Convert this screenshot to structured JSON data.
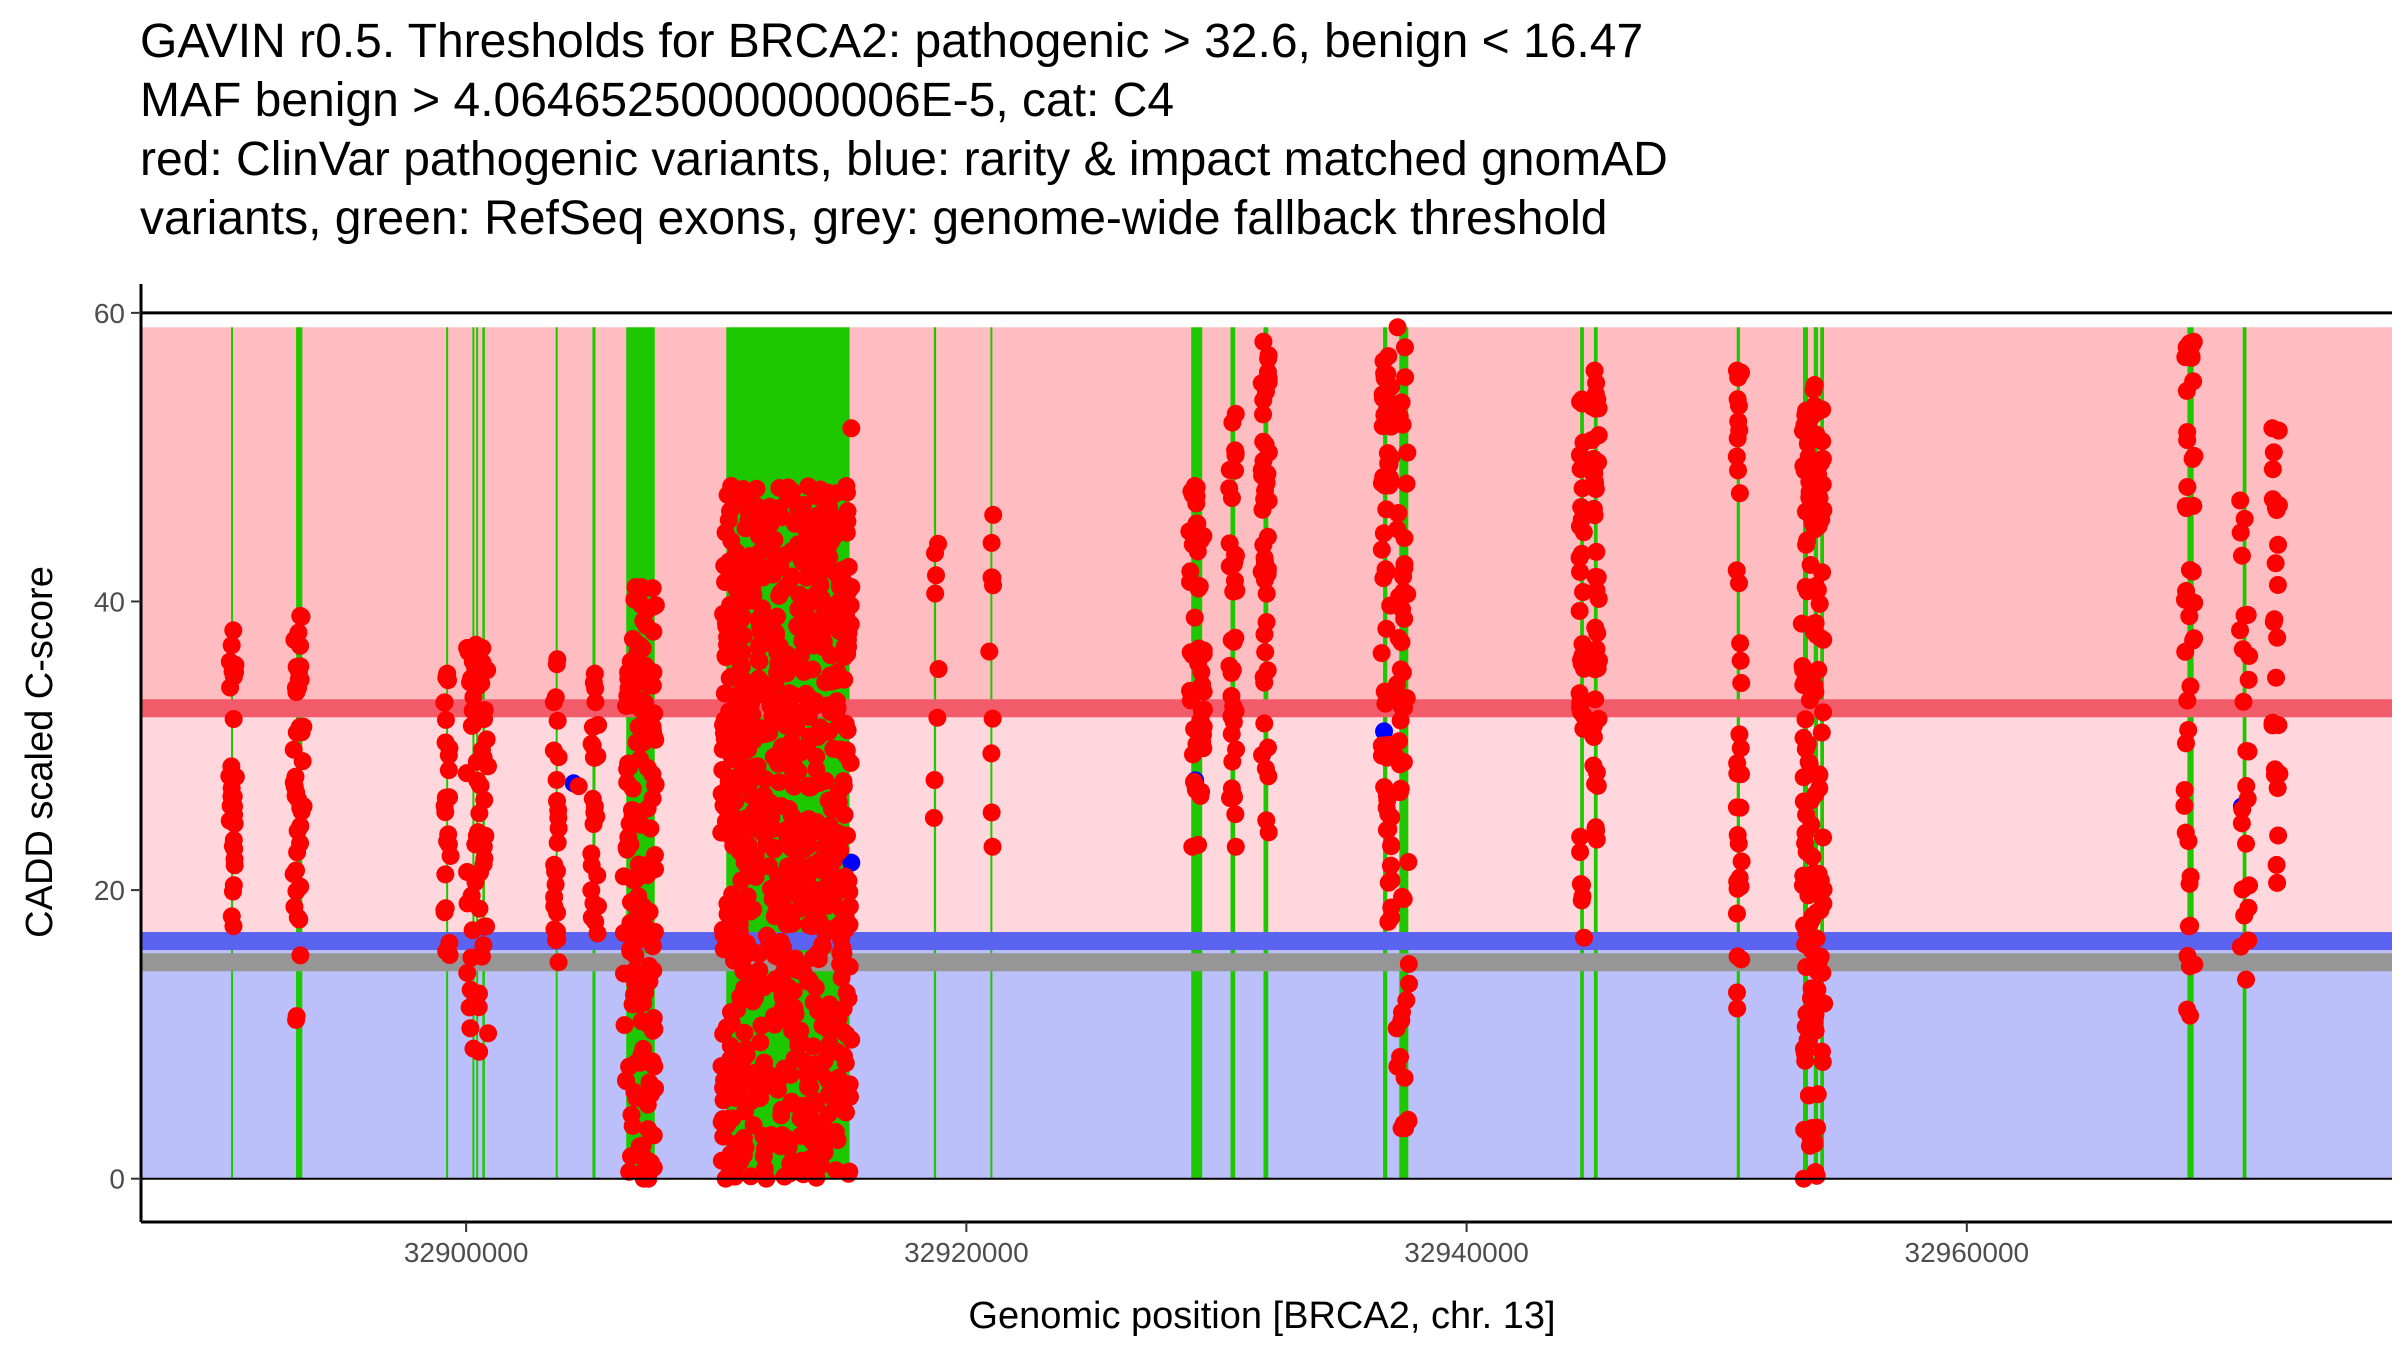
{
  "chart_data": {
    "type": "scatter",
    "title_lines": [
      "GAVIN r0.5. Thresholds for BRCA2: pathogenic > 32.6, benign < 16.47",
      "MAF benign > 4.0646525000000006E-5, cat: C4",
      "red: ClinVar pathogenic variants, blue: rarity & impact matched gnomAD",
      "variants, green: RefSeq exons, grey: genome-wide fallback threshold"
    ],
    "xlabel": "Genomic position [BRCA2, chr. 13]",
    "ylabel": "CADD scaled C-score",
    "xlim": [
      32887000,
      32977000
    ],
    "ylim": [
      -3,
      62
    ],
    "x_ticks": [
      32900000,
      32920000,
      32940000,
      32960000
    ],
    "y_ticks": [
      0,
      20,
      40,
      60
    ],
    "thresholds": {
      "pathogenic": 32.6,
      "benign": 16.47,
      "genome_wide_fallback": 15
    },
    "regions": [
      {
        "name": "pathogenic-zone",
        "y0": 32.6,
        "y1": 59,
        "color": "#ffbcc1"
      },
      {
        "name": "grey-zone",
        "y0": 16.47,
        "y1": 32.6,
        "color": "#ffd7dc"
      },
      {
        "name": "benign-zone",
        "y0": 0,
        "y1": 16.47,
        "color": "#bcc0fa"
      }
    ],
    "threshold_lines": [
      {
        "name": "pathogenic-threshold",
        "y": 32.6,
        "color": "#f25c6a"
      },
      {
        "name": "benign-threshold",
        "y": 16.47,
        "color": "#5b63f1"
      },
      {
        "name": "fallback-threshold",
        "y": 15,
        "color": "#969696"
      }
    ],
    "exons": [
      [
        32890600,
        32890680
      ],
      [
        32893200,
        32893450
      ],
      [
        32899200,
        32899280
      ],
      [
        32900250,
        32900300
      ],
      [
        32900400,
        32900450
      ],
      [
        32900650,
        32900750
      ],
      [
        32903580,
        32903630
      ],
      [
        32905050,
        32905170
      ],
      [
        32906400,
        32907540
      ],
      [
        32910400,
        32915330
      ],
      [
        32918700,
        32918790
      ],
      [
        32920960,
        32921040
      ],
      [
        32928990,
        32929430
      ],
      [
        32930560,
        32930750
      ],
      [
        32931880,
        32932070
      ],
      [
        32936660,
        32936830
      ],
      [
        32937310,
        32937670
      ],
      [
        32944540,
        32944690
      ],
      [
        32945090,
        32945240
      ],
      [
        32950800,
        32950930
      ],
      [
        32953450,
        32953650
      ],
      [
        32953880,
        32954050
      ],
      [
        32954140,
        32954290
      ],
      [
        32968820,
        32969070
      ],
      [
        32971030,
        32971180
      ]
    ],
    "exon_color": "#1ec800",
    "series": [
      {
        "name": "ClinVar pathogenic variants",
        "color": "#ff0000",
        "clusters": [
          {
            "x": [
              32890500,
              32890800
            ],
            "y": [
              17.5,
              38
            ],
            "n": 30
          },
          {
            "x": [
              32893100,
              32893500
            ],
            "y": [
              11,
              39
            ],
            "n": 45
          },
          {
            "x": [
              32899100,
              32899400
            ],
            "y": [
              15.5,
              35
            ],
            "n": 25
          },
          {
            "x": [
              32900000,
              32900900
            ],
            "y": [
              8.8,
              37
            ],
            "n": 60
          },
          {
            "x": [
              32903500,
              32903700
            ],
            "y": [
              15,
              36
            ],
            "n": 25
          },
          {
            "x": [
              32905000,
              32905300
            ],
            "y": [
              17,
              35
            ],
            "n": 25
          },
          {
            "x": [
              32906300,
              32907600
            ],
            "y": [
              0,
              41
            ],
            "n": 160
          },
          {
            "x": [
              32910200,
              32915400
            ],
            "y": [
              0,
              48
            ],
            "n": 800
          },
          {
            "x": [
              32918700,
              32918900
            ],
            "y": [
              25,
              44
            ],
            "n": 8
          },
          {
            "x": [
              32920900,
              32921100
            ],
            "y": [
              23,
              46
            ],
            "n": 10
          },
          {
            "x": [
              32928900,
              32929500
            ],
            "y": [
              23,
              48
            ],
            "n": 50
          },
          {
            "x": [
              32930500,
              32930800
            ],
            "y": [
              23,
              53
            ],
            "n": 40
          },
          {
            "x": [
              32931800,
              32932100
            ],
            "y": [
              24,
              58
            ],
            "n": 45
          },
          {
            "x": [
              32936600,
              32937000
            ],
            "y": [
              17.8,
              57
            ],
            "n": 60
          },
          {
            "x": [
              32937200,
              32937700
            ],
            "y": [
              3.5,
              59
            ],
            "n": 55
          },
          {
            "x": [
              32944500,
              32944700
            ],
            "y": [
              16.7,
              54
            ],
            "n": 35
          },
          {
            "x": [
              32945000,
              32945300
            ],
            "y": [
              23.5,
              56
            ],
            "n": 45
          },
          {
            "x": [
              32950800,
              32951000
            ],
            "y": [
              11.8,
              56
            ],
            "n": 35
          },
          {
            "x": [
              32953400,
              32954300
            ],
            "y": [
              0,
              55
            ],
            "n": 150
          },
          {
            "x": [
              32968700,
              32969100
            ],
            "y": [
              11.3,
              58
            ],
            "n": 45
          },
          {
            "x": [
              32970900,
              32971300
            ],
            "y": [
              13.8,
              47
            ],
            "n": 25
          },
          {
            "x": [
              32972200,
              32972500
            ],
            "y": [
              20.5,
              52
            ],
            "n": 25
          }
        ],
        "singles": [
          [
            32904500,
            27.2
          ],
          [
            32907100,
            0
          ],
          [
            32910600,
            0.3
          ],
          [
            32912000,
            0
          ],
          [
            32915400,
            52
          ],
          [
            32915200,
            48
          ],
          [
            32914800,
            47.5
          ],
          [
            32915400,
            41
          ],
          [
            32913100,
            13
          ],
          [
            32915200,
            10
          ],
          [
            32937400,
            3.5
          ],
          [
            32954000,
            0.2
          ],
          [
            32907000,
            41
          ],
          [
            32929100,
            27.5
          ]
        ]
      },
      {
        "name": "rarity & impact matched gnomAD variants",
        "color": "#0000ff",
        "points": [
          [
            32915400,
            21.9
          ],
          [
            32912200,
            16.3
          ],
          [
            32904300,
            27.4
          ],
          [
            32929150,
            27.6
          ],
          [
            32971000,
            25.8
          ],
          [
            32936700,
            31
          ]
        ]
      }
    ]
  }
}
